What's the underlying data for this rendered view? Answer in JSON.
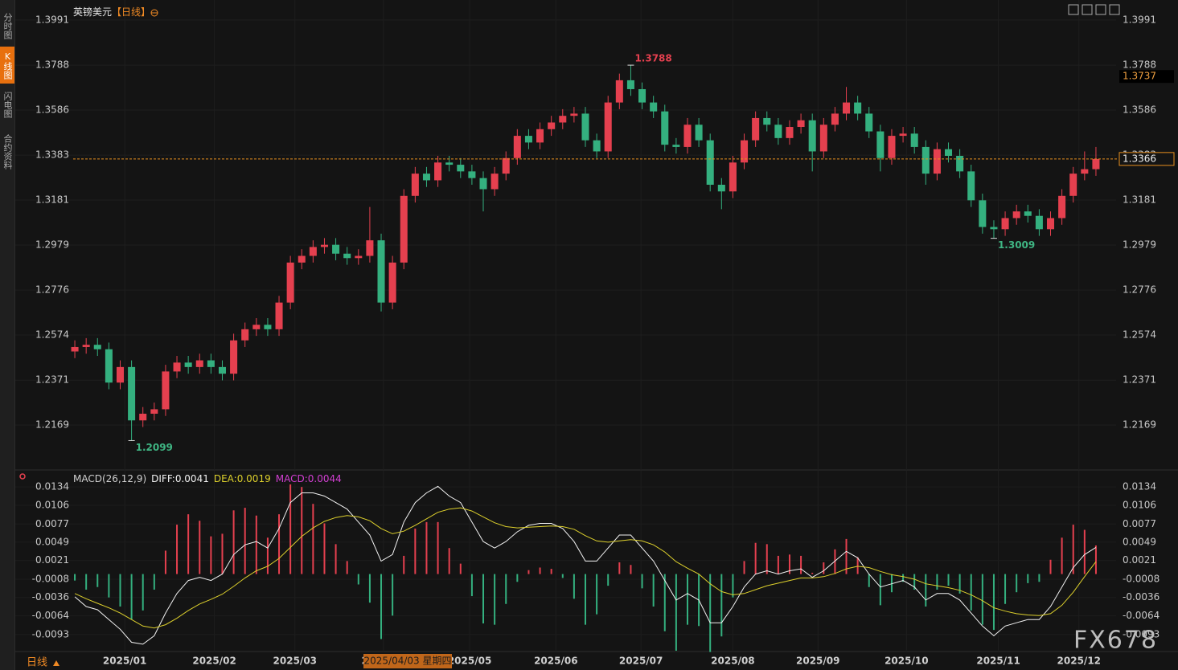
{
  "sidebar_tabs": [
    "分时图",
    "K线图",
    "闪电图",
    "合约资料"
  ],
  "period_selector": "日线",
  "crosshair_label": "2025/04/03 星期四",
  "watermark": "FX678",
  "chart_data": [
    {
      "type": "candlestick",
      "title": "英镑美元",
      "period": "【日线】",
      "up_color": "#e5404f",
      "down_color": "#34b07f",
      "grid": true,
      "last_price_line": true,
      "marker_price": 1.3737,
      "xlim": [
        -0.5,
        90.5
      ],
      "xticks": [
        {
          "value": 4.4,
          "label": "2025/01"
        },
        {
          "value": 12.3,
          "label": "2025/02"
        },
        {
          "value": 19.4,
          "label": "2025/03"
        },
        {
          "value": 27.2,
          "label": "2025/04"
        },
        {
          "value": 34.8,
          "label": "2025/05"
        },
        {
          "value": 42.4,
          "label": "2025/06"
        },
        {
          "value": 49.9,
          "label": "2025/07"
        },
        {
          "value": 58,
          "label": "2025/08"
        },
        {
          "value": 65.5,
          "label": "2025/09"
        },
        {
          "value": 73.3,
          "label": "2025/10"
        },
        {
          "value": 81.4,
          "label": "2025/11"
        },
        {
          "value": 88.5,
          "label": "2025/12"
        }
      ],
      "ylim": [
        1.1985,
        1.4063
      ],
      "yticks": [
        1.3991,
        1.3788,
        1.3586,
        1.3383,
        1.3181,
        1.2979,
        1.2776,
        1.2574,
        1.2371,
        1.2169
      ],
      "annotations": [
        {
          "x": 49,
          "value": 1.3788,
          "position": "high",
          "color": "#e5404f"
        },
        {
          "x": 5,
          "value": 1.2099,
          "position": "low",
          "color": "#3fb583"
        },
        {
          "x": 81,
          "value": 1.3009,
          "position": "low",
          "color": "#3fb583"
        }
      ],
      "candles": [
        [
          1.25,
          1.255,
          1.247,
          1.252
        ],
        [
          1.252,
          1.256,
          1.249,
          1.253
        ],
        [
          1.253,
          1.256,
          1.248,
          1.251
        ],
        [
          1.251,
          1.254,
          1.233,
          1.236
        ],
        [
          1.236,
          1.246,
          1.233,
          1.243
        ],
        [
          1.243,
          1.246,
          1.2099,
          1.219
        ],
        [
          1.219,
          1.225,
          1.216,
          1.222
        ],
        [
          1.222,
          1.227,
          1.219,
          1.224
        ],
        [
          1.224,
          1.244,
          1.221,
          1.241
        ],
        [
          1.241,
          1.248,
          1.238,
          1.245
        ],
        [
          1.245,
          1.248,
          1.24,
          1.243
        ],
        [
          1.243,
          1.249,
          1.24,
          1.246
        ],
        [
          1.246,
          1.249,
          1.24,
          1.243
        ],
        [
          1.243,
          1.246,
          1.237,
          1.24
        ],
        [
          1.24,
          1.258,
          1.237,
          1.255
        ],
        [
          1.255,
          1.263,
          1.252,
          1.26
        ],
        [
          1.26,
          1.265,
          1.257,
          1.262
        ],
        [
          1.262,
          1.265,
          1.257,
          1.26
        ],
        [
          1.26,
          1.275,
          1.257,
          1.272
        ],
        [
          1.272,
          1.293,
          1.269,
          1.29
        ],
        [
          1.29,
          1.296,
          1.287,
          1.293
        ],
        [
          1.293,
          1.3,
          1.29,
          1.297
        ],
        [
          1.297,
          1.301,
          1.294,
          1.298
        ],
        [
          1.298,
          1.301,
          1.291,
          1.294
        ],
        [
          1.294,
          1.297,
          1.289,
          1.292
        ],
        [
          1.292,
          1.296,
          1.289,
          1.293
        ],
        [
          1.293,
          1.315,
          1.29,
          1.3
        ],
        [
          1.3,
          1.303,
          1.268,
          1.272
        ],
        [
          1.272,
          1.293,
          1.269,
          1.29
        ],
        [
          1.29,
          1.323,
          1.287,
          1.32
        ],
        [
          1.32,
          1.333,
          1.317,
          1.33
        ],
        [
          1.33,
          1.333,
          1.324,
          1.327
        ],
        [
          1.327,
          1.338,
          1.324,
          1.335
        ],
        [
          1.335,
          1.338,
          1.331,
          1.334
        ],
        [
          1.334,
          1.337,
          1.328,
          1.331
        ],
        [
          1.331,
          1.334,
          1.325,
          1.328
        ],
        [
          1.328,
          1.331,
          1.313,
          1.323
        ],
        [
          1.323,
          1.333,
          1.32,
          1.33
        ],
        [
          1.33,
          1.34,
          1.327,
          1.337
        ],
        [
          1.337,
          1.35,
          1.334,
          1.347
        ],
        [
          1.347,
          1.35,
          1.341,
          1.344
        ],
        [
          1.344,
          1.353,
          1.341,
          1.35
        ],
        [
          1.35,
          1.356,
          1.347,
          1.353
        ],
        [
          1.353,
          1.359,
          1.35,
          1.356
        ],
        [
          1.356,
          1.36,
          1.353,
          1.357
        ],
        [
          1.357,
          1.36,
          1.342,
          1.345
        ],
        [
          1.345,
          1.348,
          1.337,
          1.34
        ],
        [
          1.34,
          1.365,
          1.337,
          1.362
        ],
        [
          1.362,
          1.375,
          1.359,
          1.372
        ],
        [
          1.372,
          1.3788,
          1.365,
          1.368
        ],
        [
          1.368,
          1.371,
          1.359,
          1.362
        ],
        [
          1.362,
          1.365,
          1.355,
          1.358
        ],
        [
          1.358,
          1.361,
          1.34,
          1.343
        ],
        [
          1.343,
          1.346,
          1.339,
          1.342
        ],
        [
          1.342,
          1.355,
          1.339,
          1.352
        ],
        [
          1.352,
          1.355,
          1.342,
          1.345
        ],
        [
          1.345,
          1.348,
          1.322,
          1.325
        ],
        [
          1.325,
          1.328,
          1.314,
          1.322
        ],
        [
          1.322,
          1.338,
          1.319,
          1.335
        ],
        [
          1.335,
          1.348,
          1.332,
          1.345
        ],
        [
          1.345,
          1.358,
          1.342,
          1.355
        ],
        [
          1.355,
          1.358,
          1.349,
          1.352
        ],
        [
          1.352,
          1.355,
          1.343,
          1.346
        ],
        [
          1.346,
          1.354,
          1.343,
          1.351
        ],
        [
          1.351,
          1.357,
          1.348,
          1.354
        ],
        [
          1.354,
          1.357,
          1.331,
          1.34
        ],
        [
          1.34,
          1.355,
          1.337,
          1.352
        ],
        [
          1.352,
          1.36,
          1.349,
          1.357
        ],
        [
          1.357,
          1.369,
          1.354,
          1.362
        ],
        [
          1.362,
          1.365,
          1.354,
          1.357
        ],
        [
          1.357,
          1.36,
          1.346,
          1.349
        ],
        [
          1.349,
          1.352,
          1.331,
          1.337
        ],
        [
          1.337,
          1.35,
          1.334,
          1.347
        ],
        [
          1.347,
          1.351,
          1.344,
          1.348
        ],
        [
          1.348,
          1.351,
          1.339,
          1.342
        ],
        [
          1.342,
          1.345,
          1.325,
          1.33
        ],
        [
          1.33,
          1.344,
          1.327,
          1.341
        ],
        [
          1.341,
          1.344,
          1.335,
          1.338
        ],
        [
          1.338,
          1.341,
          1.328,
          1.331
        ],
        [
          1.331,
          1.334,
          1.315,
          1.318
        ],
        [
          1.318,
          1.321,
          1.303,
          1.306
        ],
        [
          1.306,
          1.309,
          1.3009,
          1.305
        ],
        [
          1.305,
          1.313,
          1.302,
          1.31
        ],
        [
          1.31,
          1.316,
          1.307,
          1.313
        ],
        [
          1.313,
          1.316,
          1.308,
          1.311
        ],
        [
          1.311,
          1.314,
          1.302,
          1.305
        ],
        [
          1.305,
          1.313,
          1.302,
          1.31
        ],
        [
          1.31,
          1.323,
          1.307,
          1.32
        ],
        [
          1.32,
          1.333,
          1.317,
          1.33
        ],
        [
          1.33,
          1.34,
          1.327,
          1.332
        ],
        [
          1.332,
          1.342,
          1.329,
          1.3366
        ]
      ]
    },
    {
      "type": "macd",
      "label": "MACD(26,12,9)",
      "legend_separator": ":",
      "ylim": [
        -0.0118,
        0.0154
      ],
      "yticks": [
        0.0134,
        0.0106,
        0.0077,
        0.0049,
        0.0021,
        -0.0008,
        -0.0036,
        -0.0064,
        -0.0093
      ],
      "series": [
        {
          "name": "DIFF",
          "color": "#f2f2f2",
          "values": [
            -0.0035,
            -0.005,
            -0.0055,
            -0.007,
            -0.0085,
            -0.0105,
            -0.0108,
            -0.0095,
            -0.006,
            -0.003,
            -0.001,
            -0.0005,
            -0.001,
            0.0,
            0.003,
            0.0045,
            0.005,
            0.004,
            0.007,
            0.011,
            0.0125,
            0.0125,
            0.012,
            0.011,
            0.01,
            0.008,
            0.006,
            0.002,
            0.003,
            0.008,
            0.011,
            0.0125,
            0.0135,
            0.012,
            0.011,
            0.008,
            0.005,
            0.004,
            0.005,
            0.0065,
            0.0075,
            0.0078,
            0.0078,
            0.007,
            0.005,
            0.002,
            0.002,
            0.004,
            0.006,
            0.006,
            0.004,
            0.002,
            -0.001,
            -0.004,
            -0.003,
            -0.004,
            -0.0075,
            -0.0075,
            -0.005,
            -0.002,
            0.0,
            0.0005,
            0.0,
            0.0005,
            0.0008,
            -0.0005,
            0.0005,
            0.002,
            0.0035,
            0.0025,
            0.0,
            -0.002,
            -0.0015,
            -0.001,
            -0.002,
            -0.004,
            -0.003,
            -0.003,
            -0.004,
            -0.006,
            -0.008,
            -0.0095,
            -0.008,
            -0.0075,
            -0.007,
            -0.007,
            -0.005,
            -0.002,
            0.001,
            0.003,
            0.0041
          ]
        },
        {
          "name": "DEA",
          "color": "#ddd02c",
          "values": [
            -0.003,
            -0.0038,
            -0.0045,
            -0.0052,
            -0.006,
            -0.007,
            -0.008,
            -0.0083,
            -0.0078,
            -0.0068,
            -0.0056,
            -0.0046,
            -0.0039,
            -0.0031,
            -0.0019,
            -0.0006,
            0.0005,
            0.0012,
            0.0024,
            0.0041,
            0.0058,
            0.0071,
            0.0081,
            0.0087,
            0.009,
            0.0088,
            0.0082,
            0.007,
            0.0062,
            0.0066,
            0.0075,
            0.0085,
            0.0095,
            0.01,
            0.0102,
            0.0097,
            0.0088,
            0.0079,
            0.0073,
            0.0071,
            0.0072,
            0.0073,
            0.0074,
            0.0073,
            0.0069,
            0.0059,
            0.0051,
            0.0049,
            0.0051,
            0.0053,
            0.0051,
            0.0045,
            0.0034,
            0.0019,
            0.0009,
            0.0,
            -0.0015,
            -0.0027,
            -0.0032,
            -0.003,
            -0.0024,
            -0.0018,
            -0.0014,
            -0.001,
            -0.0006,
            -0.0006,
            -0.0004,
            0.0001,
            0.0008,
            0.0012,
            0.001,
            0.0004,
            -0.0001,
            -0.0004,
            -0.0008,
            -0.0015,
            -0.0018,
            -0.0021,
            -0.0025,
            -0.0032,
            -0.0041,
            -0.0052,
            -0.0057,
            -0.0061,
            -0.0063,
            -0.0064,
            -0.0061,
            -0.0048,
            -0.0028,
            -0.0004,
            0.0019
          ]
        },
        {
          "name": "MACD",
          "color": "#d33fd3",
          "up_color": "#e5404f",
          "down_color": "#34b07f",
          "values": [
            -0.001,
            -0.0024,
            -0.002,
            -0.0036,
            -0.005,
            -0.007,
            -0.0056,
            -0.0024,
            0.0036,
            0.0076,
            0.0092,
            0.0082,
            0.0058,
            0.0062,
            0.0098,
            0.0102,
            0.009,
            0.0056,
            0.0092,
            0.0138,
            0.0134,
            0.0108,
            0.0078,
            0.0046,
            0.002,
            -0.0016,
            -0.0044,
            -0.01,
            -0.0064,
            0.0028,
            0.007,
            0.008,
            0.008,
            0.004,
            0.0016,
            -0.0034,
            -0.0076,
            -0.0078,
            -0.0046,
            -0.0012,
            0.0006,
            0.001,
            0.0008,
            -0.0006,
            -0.0038,
            -0.0078,
            -0.0062,
            -0.0018,
            0.0018,
            0.0014,
            -0.0022,
            -0.005,
            -0.0088,
            -0.0118,
            -0.0078,
            -0.008,
            -0.012,
            -0.0096,
            -0.0036,
            0.002,
            0.0048,
            0.0046,
            0.0028,
            0.003,
            0.0028,
            0.0002,
            0.0018,
            0.0038,
            0.0054,
            0.0026,
            -0.002,
            -0.0048,
            -0.0028,
            -0.0012,
            -0.0024,
            -0.005,
            -0.0024,
            -0.0018,
            -0.003,
            -0.0056,
            -0.0078,
            -0.0086,
            -0.0046,
            -0.0028,
            -0.0014,
            -0.0012,
            0.0022,
            0.0056,
            0.0076,
            0.0068,
            0.0044
          ]
        }
      ]
    }
  ]
}
